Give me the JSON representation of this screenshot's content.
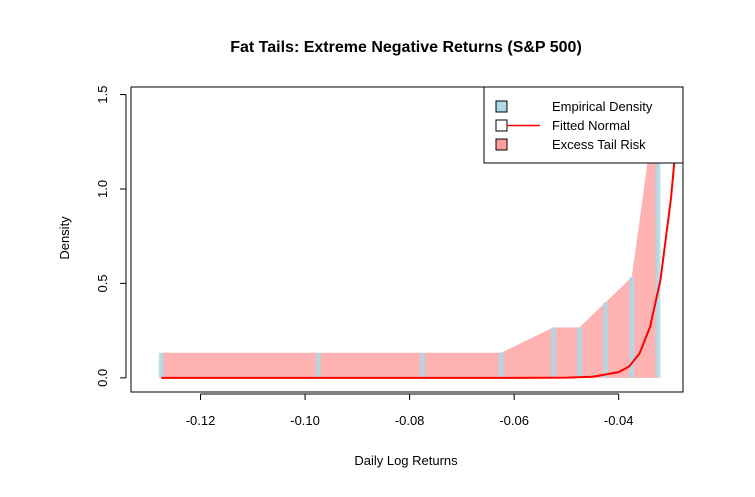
{
  "chart_data": {
    "type": "bar",
    "title": "Fat Tails: Extreme Negative Returns (S&P 500)",
    "xlabel": "Daily Log Returns",
    "ylabel": "Density",
    "xlim": [
      -0.1333,
      -0.0277
    ],
    "ylim": [
      -0.075,
      1.54
    ],
    "x_ticks": [
      {
        "value": -0.12,
        "label": "-0.12"
      },
      {
        "value": -0.1,
        "label": "-0.10"
      },
      {
        "value": -0.08,
        "label": "-0.08"
      },
      {
        "value": -0.06,
        "label": "-0.06"
      },
      {
        "value": -0.04,
        "label": "-0.04"
      }
    ],
    "y_ticks": [
      {
        "value": 0.0,
        "label": "0.0"
      },
      {
        "value": 0.5,
        "label": "0.5"
      },
      {
        "value": 1.0,
        "label": "1.0"
      },
      {
        "value": 1.5,
        "label": "1.5"
      }
    ],
    "series": [
      {
        "name": "Empirical Density",
        "kind": "bars",
        "color": "#add8e6",
        "x": [
          -0.1275,
          -0.1225,
          -0.1175,
          -0.1125,
          -0.1075,
          -0.1025,
          -0.0975,
          -0.0925,
          -0.0875,
          -0.0825,
          -0.0775,
          -0.0725,
          -0.0675,
          -0.0625,
          -0.0575,
          -0.0525,
          -0.0475,
          -0.0425,
          -0.0375,
          -0.0325
        ],
        "y": [
          0.133,
          0,
          0,
          0,
          0,
          0,
          0.133,
          0,
          0,
          0,
          0.133,
          0,
          0,
          0.133,
          0,
          0.267,
          0.267,
          0.4,
          0.533,
          1.2
        ]
      },
      {
        "name": "Excess Tail Risk",
        "kind": "area",
        "color": "#ff0000",
        "opacity": 0.3,
        "x": [
          -0.1275,
          -0.0975,
          -0.0775,
          -0.0625,
          -0.0525,
          -0.0475,
          -0.0425,
          -0.0375,
          -0.0325
        ],
        "y": [
          0.133,
          0.133,
          0.133,
          0.133,
          0.267,
          0.267,
          0.4,
          0.533,
          1.54
        ]
      },
      {
        "name": "Fitted Normal",
        "kind": "line",
        "color": "#ff0000",
        "x": [
          -0.1275,
          -0.06,
          -0.055,
          -0.05,
          -0.045,
          -0.04,
          -0.038,
          -0.036,
          -0.034,
          -0.032,
          -0.03,
          -0.029
        ],
        "y": [
          0,
          0,
          0.0002,
          0.001,
          0.006,
          0.03,
          0.06,
          0.13,
          0.27,
          0.52,
          0.95,
          1.25
        ]
      }
    ],
    "legend": {
      "position": "top-right",
      "entries": [
        {
          "label": "Empirical Density",
          "symbol": "box",
          "color": "#add8e6"
        },
        {
          "label": "Fitted Normal",
          "symbol": "line",
          "color": "#ff0000"
        },
        {
          "label": "Excess Tail Risk",
          "symbol": "box",
          "color": "#ff9e9e"
        }
      ]
    },
    "grid": false
  }
}
